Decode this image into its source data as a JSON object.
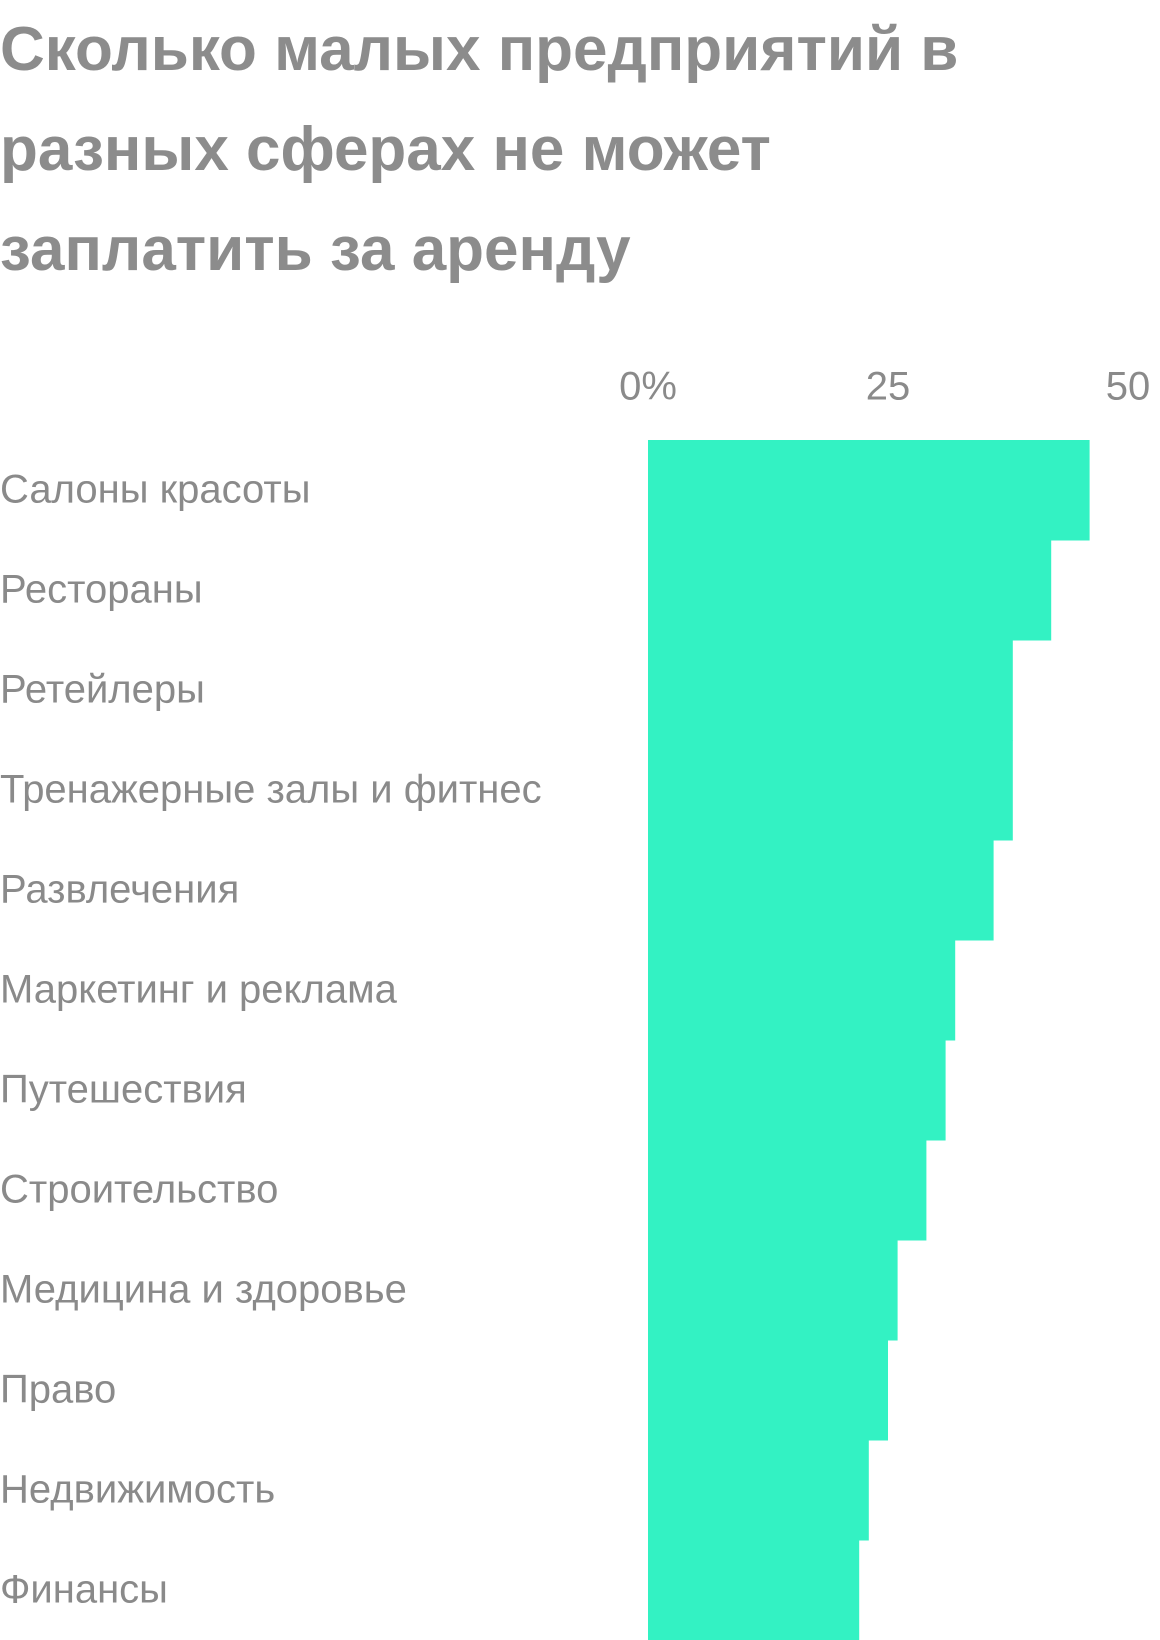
{
  "chart_data": {
    "type": "bar",
    "orientation": "horizontal",
    "title": "Сколько малых предприятий в разных сферах не может заплатить за аренду",
    "categories": [
      "Салоны красоты",
      "Рестораны",
      "Ретейлеры",
      "Тренажерные залы и фитнес",
      "Развлечения",
      "Маркетинг и реклама",
      "Путешествия",
      "Строительство",
      "Медицина и здоровье",
      "Право",
      "Недвижимость",
      "Финансы"
    ],
    "values": [
      46,
      42,
      38,
      38,
      36,
      32,
      31,
      29,
      26,
      25,
      23,
      22
    ],
    "color": "#33f2c3",
    "xlim": [
      0,
      50
    ],
    "xticks": [
      {
        "value": 0,
        "label": "0%"
      },
      25,
      50
    ]
  }
}
